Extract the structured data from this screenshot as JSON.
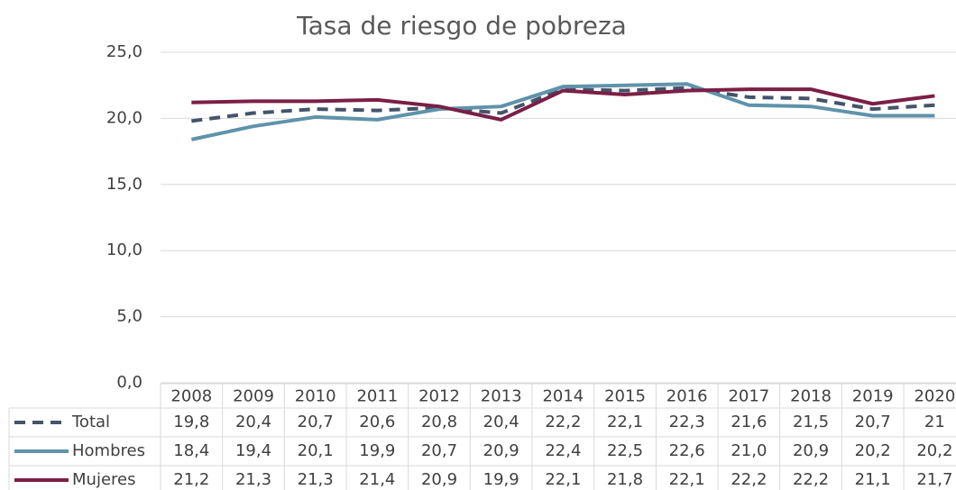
{
  "chart_data": {
    "type": "line",
    "title": "Tasa de riesgo de pobreza",
    "categories": [
      "2008",
      "2009",
      "2010",
      "2011",
      "2012",
      "2013",
      "2014",
      "2015",
      "2016",
      "2017",
      "2018",
      "2019",
      "2020"
    ],
    "series": [
      {
        "name": "Total",
        "color": "#44546a",
        "dashed": true,
        "values": [
          19.8,
          20.4,
          20.7,
          20.6,
          20.8,
          20.4,
          22.2,
          22.1,
          22.3,
          21.6,
          21.5,
          20.7,
          21
        ],
        "value_labels": [
          "19,8",
          "20,4",
          "20,7",
          "20,6",
          "20,8",
          "20,4",
          "22,2",
          "22,1",
          "22,3",
          "21,6",
          "21,5",
          "20,7",
          "21"
        ]
      },
      {
        "name": "Hombres",
        "color": "#5f93aa",
        "dashed": false,
        "values": [
          18.4,
          19.4,
          20.1,
          19.9,
          20.7,
          20.9,
          22.4,
          22.5,
          22.6,
          21.0,
          20.9,
          20.2,
          20.2
        ],
        "value_labels": [
          "18,4",
          "19,4",
          "20,1",
          "19,9",
          "20,7",
          "20,9",
          "22,4",
          "22,5",
          "22,6",
          "21,0",
          "20,9",
          "20,2",
          "20,2"
        ]
      },
      {
        "name": "Mujeres",
        "color": "#7b1f45",
        "dashed": false,
        "values": [
          21.2,
          21.3,
          21.3,
          21.4,
          20.9,
          19.9,
          22.1,
          21.8,
          22.1,
          22.2,
          22.2,
          21.1,
          21.7
        ],
        "value_labels": [
          "21,2",
          "21,3",
          "21,3",
          "21,4",
          "20,9",
          "19,9",
          "22,1",
          "21,8",
          "22,1",
          "22,2",
          "22,2",
          "21,1",
          "21,7"
        ]
      }
    ],
    "ylim": [
      0,
      25
    ],
    "yticks": [
      {
        "value": 0,
        "label": "0,0"
      },
      {
        "value": 5,
        "label": "5,0"
      },
      {
        "value": 10,
        "label": "10,0"
      },
      {
        "value": 15,
        "label": "15,0"
      },
      {
        "value": 20,
        "label": "20,0"
      },
      {
        "value": 25,
        "label": "25,0"
      }
    ],
    "grid": true
  }
}
